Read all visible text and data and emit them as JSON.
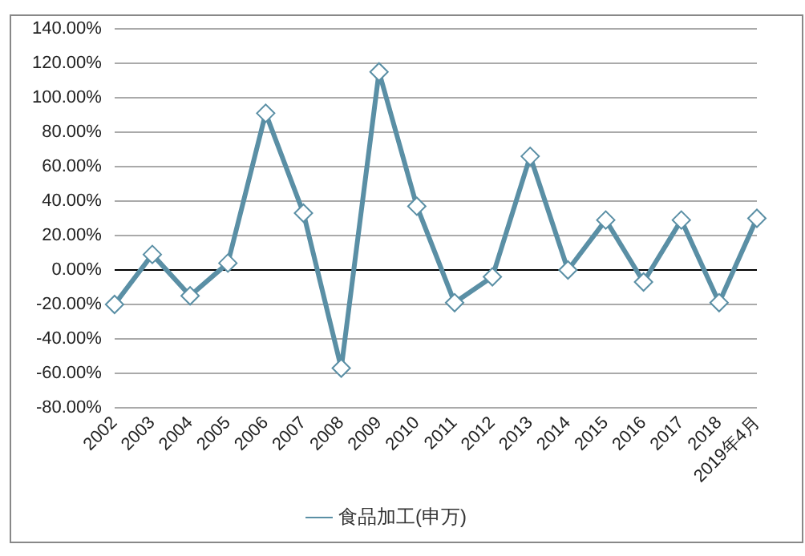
{
  "chart_data": {
    "type": "line",
    "categories": [
      "2002",
      "2003",
      "2004",
      "2005",
      "2006",
      "2007",
      "2008",
      "2009",
      "2010",
      "2011",
      "2012",
      "2013",
      "2014",
      "2015",
      "2016",
      "2017",
      "2018",
      "2019年4月"
    ],
    "series": [
      {
        "name": "食品加工(申万)",
        "color": "#5a8fa5",
        "values": [
          -20,
          9,
          -15,
          4,
          91,
          33,
          -57,
          115,
          37,
          -19,
          -4,
          66,
          0,
          29,
          -7,
          29,
          -19,
          30
        ]
      }
    ],
    "ylim": [
      -80,
      140
    ],
    "yticks": [
      {
        "value": -80,
        "label": "-80.00%"
      },
      {
        "value": -60,
        "label": "-60.00%"
      },
      {
        "value": -40,
        "label": "-40.00%"
      },
      {
        "value": -20,
        "label": "-20.00%"
      },
      {
        "value": 0,
        "label": "0.00%"
      },
      {
        "value": 20,
        "label": "20.00%"
      },
      {
        "value": 40,
        "label": "40.00%"
      },
      {
        "value": 60,
        "label": "60.00%"
      },
      {
        "value": 80,
        "label": "80.00%"
      },
      {
        "value": 100,
        "label": "100.00%"
      },
      {
        "value": 120,
        "label": "120.00%"
      },
      {
        "value": 140,
        "label": "140.00%"
      }
    ],
    "grid": "y",
    "legend": "bottom",
    "marker": "diamond",
    "line_style": "solid"
  }
}
